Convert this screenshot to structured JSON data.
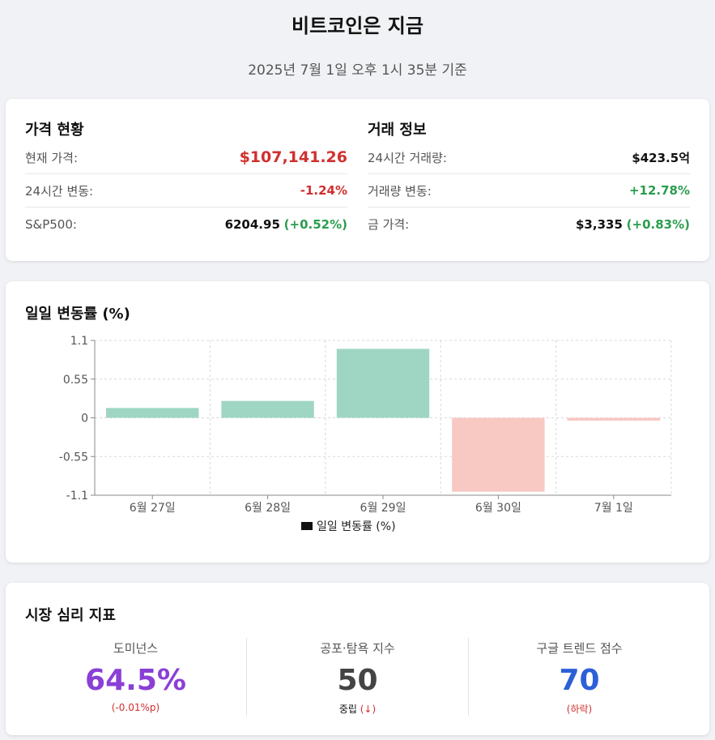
{
  "header": {
    "title": "비트코인은 지금",
    "subtitle": "2025년 7월 1일 오후 1시 35분 기준"
  },
  "price": {
    "title": "가격 현황",
    "current_label": "현재 가격:",
    "current_value": "$107,141.26",
    "change_label": "24시간 변동:",
    "change_value": "-1.24%",
    "sp_label": "S&P500:",
    "sp_value": "6204.95",
    "sp_change": "(+0.52%)"
  },
  "trade": {
    "title": "거래 정보",
    "volume_label": "24시간 거래량:",
    "volume_value": "$423.5억",
    "volchange_label": "거래량 변동:",
    "volchange_value": "+12.78%",
    "gold_label": "금 가격:",
    "gold_value": "$3,335",
    "gold_change": "(+0.83%)"
  },
  "chart_data": {
    "type": "bar",
    "title": "일일 변동률 (%)",
    "categories": [
      "6월 27일",
      "6월 28일",
      "6월 29일",
      "6월 30일",
      "7월 1일"
    ],
    "series": [
      {
        "name": "일일 변동률 (%)",
        "values": [
          0.14,
          0.24,
          0.98,
          -1.05,
          -0.04
        ]
      }
    ],
    "ylim": [
      -1.1,
      1.1
    ],
    "yticks": [
      1.1,
      0.55,
      0,
      -0.55,
      -1.1
    ],
    "ytick_labels": [
      "1.1",
      "0.55",
      "0",
      "-0.55",
      "-1.1"
    ],
    "grid": true,
    "legend": "bottom",
    "colors": {
      "positive": "#9fd6c3",
      "negative": "#f8c8c3",
      "legend_swatch": "#111111"
    }
  },
  "sentiment": {
    "title": "시장 심리 지표",
    "dominance": {
      "label": "도미넌스",
      "value": "64.5%",
      "sub": "(-0.01%p)"
    },
    "fear_greed": {
      "label": "공포·탐욕 지수",
      "value": "50",
      "sub_text": "중립",
      "sub_arrow": "(↓)"
    },
    "google": {
      "label": "구글 트렌드 점수",
      "value": "70",
      "sub": "(하락)"
    }
  }
}
